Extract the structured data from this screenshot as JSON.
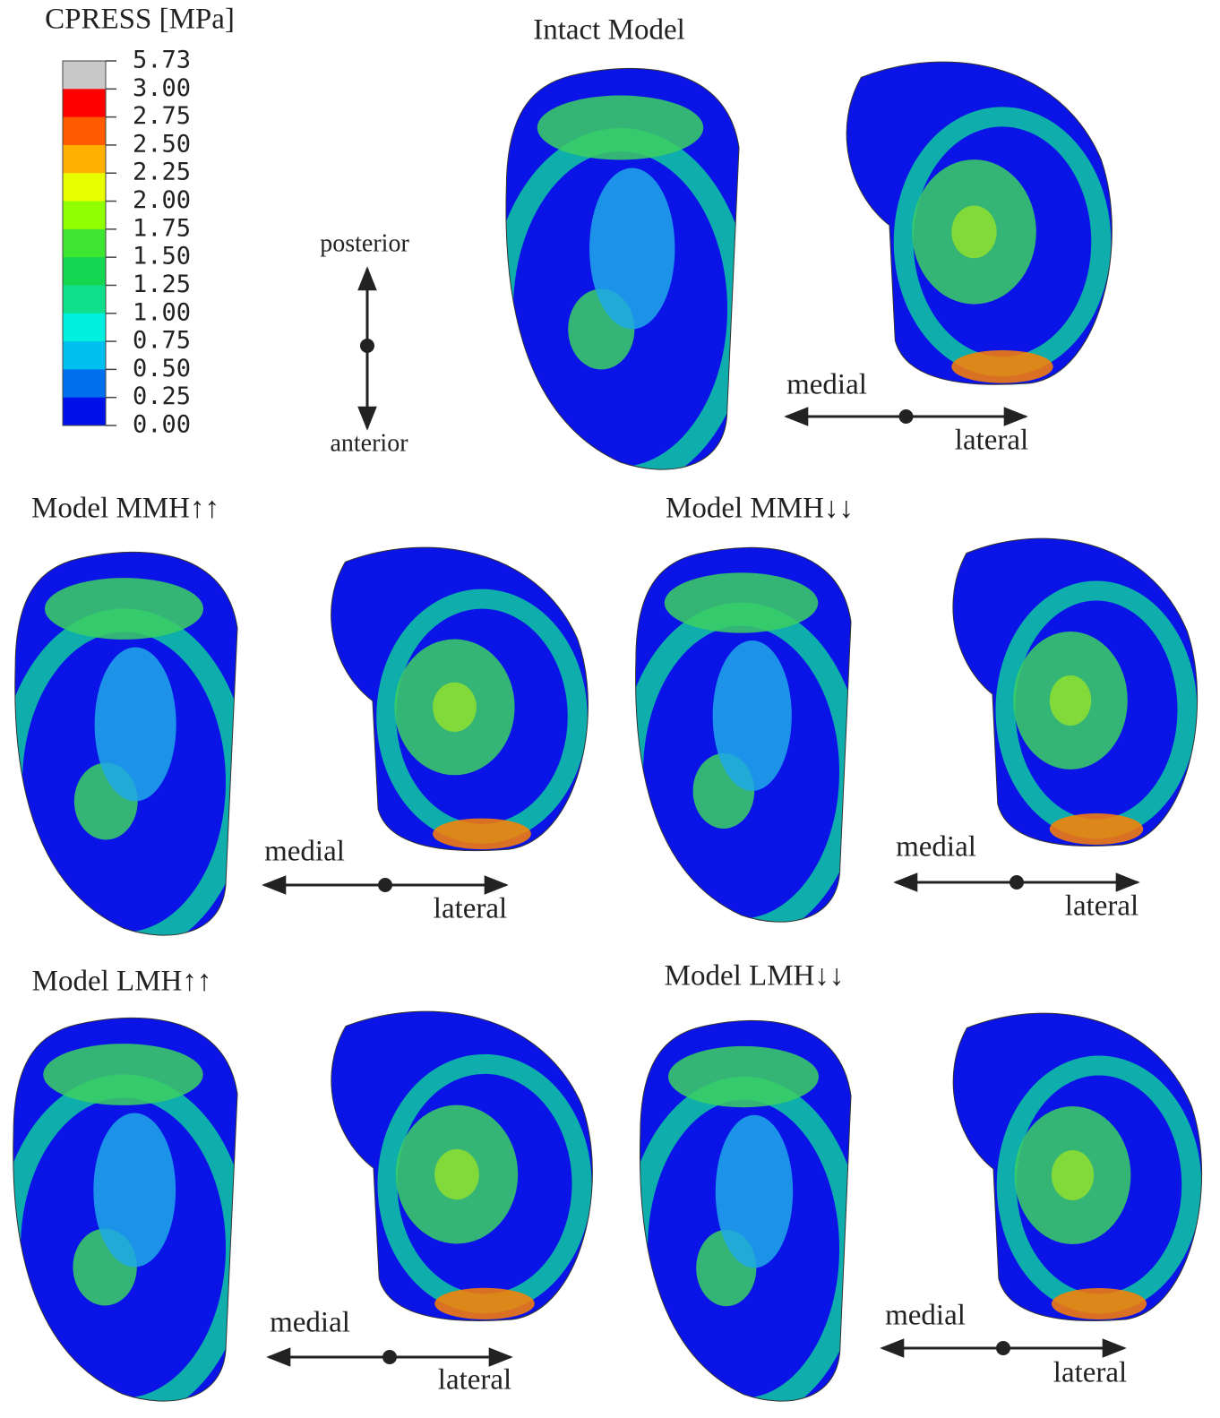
{
  "legend": {
    "title": "CPRESS [MPa]",
    "labels": [
      "5.73",
      "3.00",
      "2.75",
      "2.50",
      "2.25",
      "2.00",
      "1.75",
      "1.50",
      "1.25",
      "1.00",
      "0.75",
      "0.50",
      "0.25",
      "0.00"
    ],
    "colors": [
      "#c8c8c8",
      "#ff0000",
      "#ff5a00",
      "#ffb000",
      "#e8ff00",
      "#90ff00",
      "#3ee632",
      "#14d650",
      "#10e08c",
      "#00f0e0",
      "#00c0f0",
      "#0070f0",
      "#0010e8"
    ]
  },
  "orientation": {
    "posterior": "posterior",
    "anterior": "anterior"
  },
  "panels": [
    {
      "title": "Intact Model",
      "medial": "medial",
      "lateral": "lateral"
    },
    {
      "title": "Model MMH↑↑",
      "medial": "medial",
      "lateral": "lateral"
    },
    {
      "title": "Model MMH↓↓",
      "medial": "medial",
      "lateral": "lateral"
    },
    {
      "title": "Model LMH↑↑",
      "medial": "medial",
      "lateral": "lateral"
    },
    {
      "title": "Model LMH↓↓",
      "medial": "medial",
      "lateral": "lateral"
    }
  ]
}
